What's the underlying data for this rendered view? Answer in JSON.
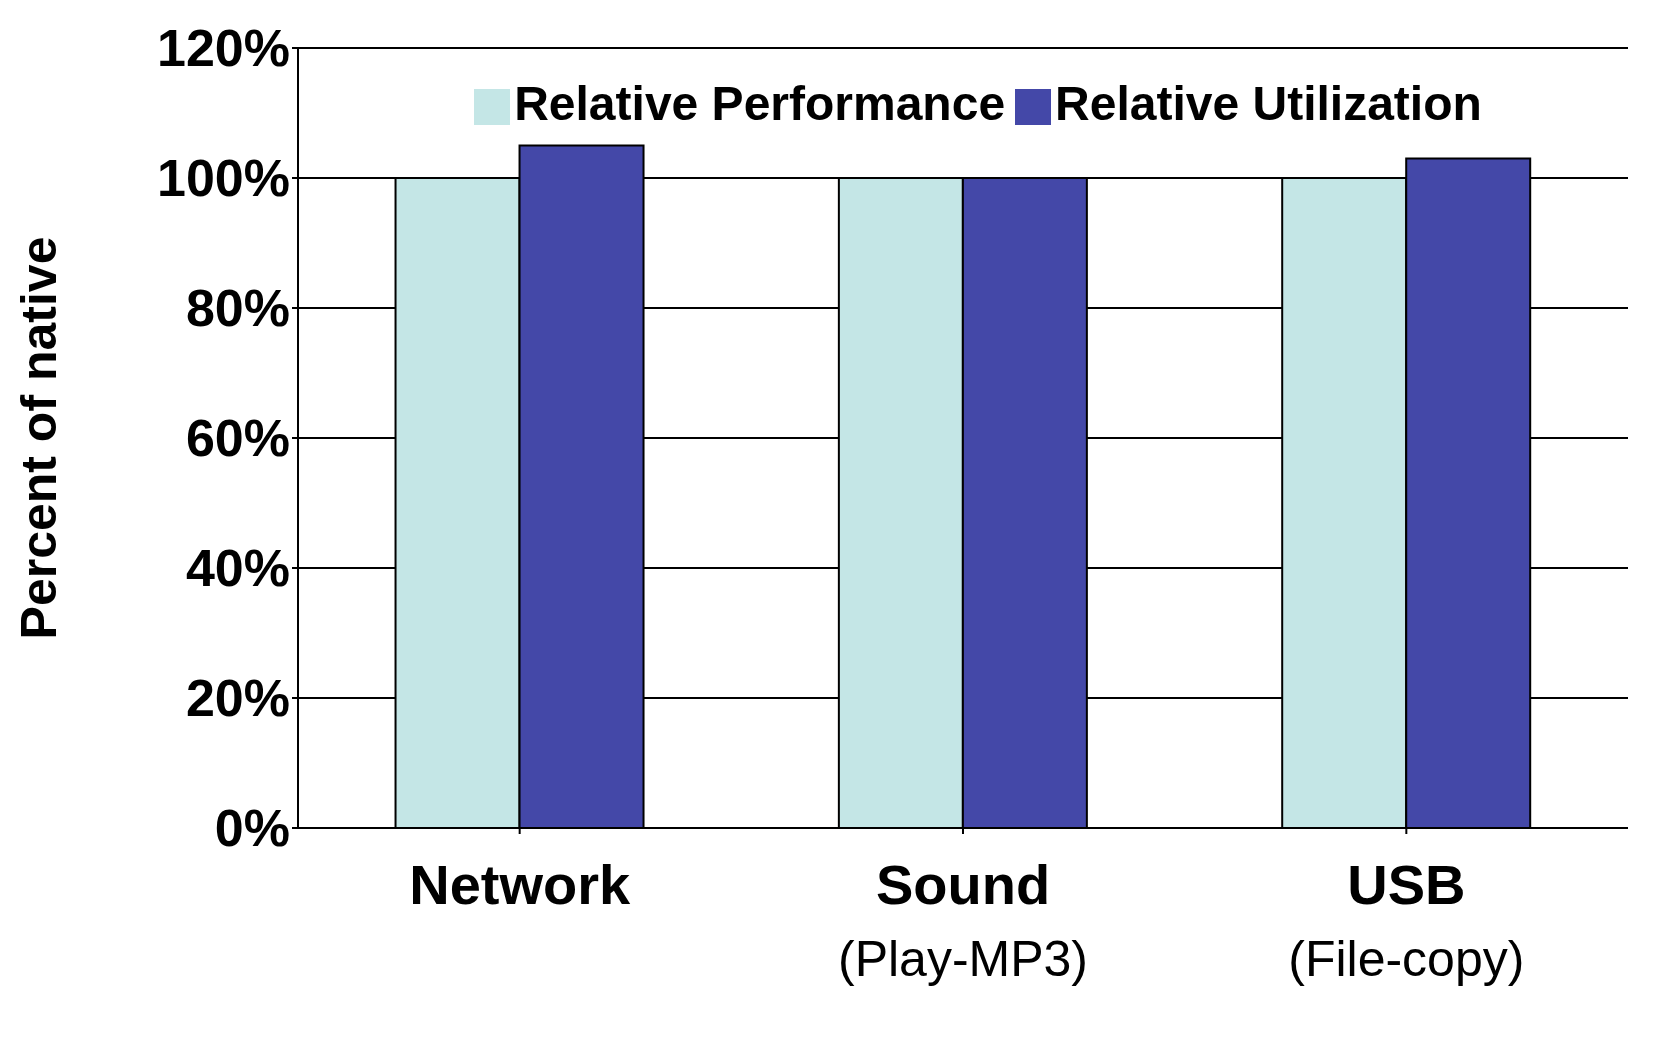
{
  "chart_data": {
    "type": "bar",
    "ylabel": "Percent of native",
    "categories": [
      "Network",
      "Sound\n(Play-MP3)",
      "USB\n(File-copy)"
    ],
    "series": [
      {
        "name": "Relative Performance",
        "color": "#c4e6e6",
        "values": [
          100,
          100,
          100
        ]
      },
      {
        "name": "Relative Utilization",
        "color": "#4448a8",
        "values": [
          105,
          100,
          103
        ]
      }
    ],
    "ylim": [
      0,
      120
    ],
    "yticks": [
      {
        "value": 0,
        "label": "0%"
      },
      {
        "value": 20,
        "label": "20%"
      },
      {
        "value": 40,
        "label": "40%"
      },
      {
        "value": 60,
        "label": "60%"
      },
      {
        "value": 80,
        "label": "80%"
      },
      {
        "value": 100,
        "label": "100%"
      },
      {
        "value": 120,
        "label": "120%"
      }
    ],
    "grid": "y",
    "legend": "top"
  }
}
